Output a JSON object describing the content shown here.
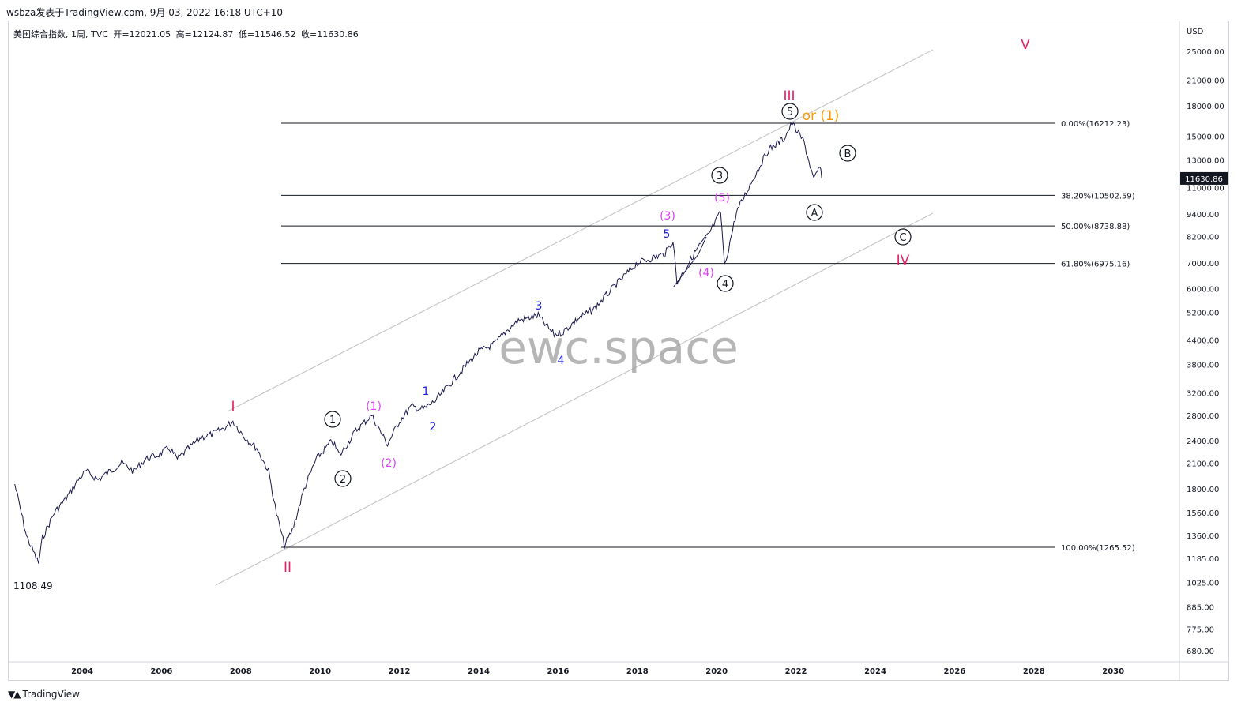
{
  "header": {
    "author_line": "wsbza发表于TradingView.com, 9月 03, 2022 16:18 UTC+10"
  },
  "legend": {
    "symbol": "美国综合指数, 1周, TVC",
    "open": "开=12021.05",
    "high": "高=12124.87",
    "low": "低=11546.52",
    "close": "收=11630.86"
  },
  "footer": {
    "brand": "TradingView",
    "icon": "tradingview-logo-icon"
  },
  "watermark": "ewc.space",
  "colors": {
    "price": "#1a1a4e",
    "red": "#e91e63",
    "magenta": "#e040fb",
    "blue": "#1f1fd6",
    "orange": "#ff9800",
    "black": "#131722",
    "channel": "#c8c8c8",
    "fib": "#131722",
    "last_price_bg": "#131722"
  },
  "chart_data": {
    "type": "line",
    "currency": "USD",
    "y_scale": "log",
    "x_ticks": [
      "2004",
      "2006",
      "2008",
      "2010",
      "2012",
      "2014",
      "2016",
      "2018",
      "2020",
      "2022",
      "2024",
      "2026",
      "2028",
      "2030"
    ],
    "y_ticks": [
      "25000.00",
      "21000.00",
      "18000.00",
      "15000.00",
      "13000.00",
      "11000.00",
      "9400.00",
      "8200.00",
      "7000.00",
      "6000.00",
      "5200.00",
      "4400.00",
      "3800.00",
      "3200.00",
      "2800.00",
      "2400.00",
      "2100.00",
      "1800.00",
      "1560.00",
      "1360.00",
      "1185.00",
      "1025.00",
      "885.00",
      "775.00",
      "680.00"
    ],
    "last_price": "11630.86",
    "low_label": "1108.49",
    "fib_levels": [
      {
        "label": "0.00%(16212.23)",
        "value": 16212.23
      },
      {
        "label": "38.20%(10502.59)",
        "value": 10502.59
      },
      {
        "label": "50.00%(8738.88)",
        "value": 8738.88
      },
      {
        "label": "61.80%(6975.16)",
        "value": 6975.16
      },
      {
        "label": "100.00%(1265.52)",
        "value": 1265.52
      }
    ],
    "series": [
      {
        "x": [
          2002.3,
          2002.6,
          2002.9,
          2003.0,
          2003.3,
          2003.6,
          2003.9,
          2004.1,
          2004.4,
          2004.7,
          2005.0,
          2005.3,
          2005.6,
          2005.9,
          2006.2,
          2006.4,
          2006.7,
          2007.0,
          2007.3,
          2007.6,
          2007.8,
          2008.1,
          2008.4,
          2008.7,
          2008.9,
          2009.1,
          2009.3,
          2009.6,
          2009.9,
          2010.3,
          2010.5,
          2010.9,
          2011.3,
          2011.6,
          2011.7,
          2012.0,
          2012.3,
          2012.6,
          2012.9,
          2013.3,
          2013.7,
          2014.0,
          2014.4,
          2014.7,
          2015.0,
          2015.5,
          2015.7,
          2015.9,
          2016.1,
          2016.5,
          2016.9,
          2017.5,
          2018.0,
          2018.2,
          2018.7,
          2018.9,
          2019.0,
          2019.5,
          2019.8,
          2020.1,
          2020.2,
          2020.5,
          2020.9,
          2021.3,
          2021.7,
          2021.9,
          2022.2,
          2022.45,
          2022.6,
          2022.65
        ],
        "y": [
          1850,
          1350,
          1150,
          1340,
          1560,
          1700,
          1900,
          2000,
          1900,
          2000,
          2100,
          2000,
          2150,
          2200,
          2300,
          2150,
          2300,
          2450,
          2500,
          2600,
          2700,
          2450,
          2300,
          2000,
          1550,
          1280,
          1400,
          1800,
          2150,
          2400,
          2200,
          2550,
          2800,
          2450,
          2350,
          2700,
          2950,
          2900,
          3050,
          3400,
          3800,
          4100,
          4300,
          4650,
          4950,
          5100,
          4800,
          4550,
          4600,
          5000,
          5300,
          6200,
          7000,
          7100,
          7400,
          8000,
          6200,
          7600,
          8300,
          9500,
          6850,
          9500,
          11500,
          13800,
          14800,
          16200,
          14500,
          11500,
          12500,
          11630
        ]
      }
    ],
    "annotations": [
      {
        "text": "I",
        "color": "red"
      },
      {
        "text": "II",
        "color": "red"
      },
      {
        "text": "III",
        "color": "red"
      },
      {
        "text": "IV",
        "color": "red"
      },
      {
        "text": "V",
        "color": "red"
      },
      {
        "text": "1",
        "color": "black"
      },
      {
        "text": "2",
        "color": "black"
      },
      {
        "text": "3",
        "color": "black"
      },
      {
        "text": "4",
        "color": "black"
      },
      {
        "text": "5",
        "color": "black"
      },
      {
        "text": "A",
        "color": "black"
      },
      {
        "text": "B",
        "color": "black"
      },
      {
        "text": "C",
        "color": "black"
      },
      {
        "text": "(1)",
        "color": "magenta"
      },
      {
        "text": "(2)",
        "color": "magenta"
      },
      {
        "text": "(3)",
        "color": "magenta"
      },
      {
        "text": "(4)",
        "color": "magenta"
      },
      {
        "text": "(5)",
        "color": "magenta"
      },
      {
        "text": "or (1)",
        "color": "orange"
      },
      {
        "text": "1",
        "color": "blue"
      },
      {
        "text": "2",
        "color": "blue"
      },
      {
        "text": "3",
        "color": "blue"
      },
      {
        "text": "4",
        "color": "blue"
      },
      {
        "text": "5",
        "color": "blue"
      }
    ]
  }
}
